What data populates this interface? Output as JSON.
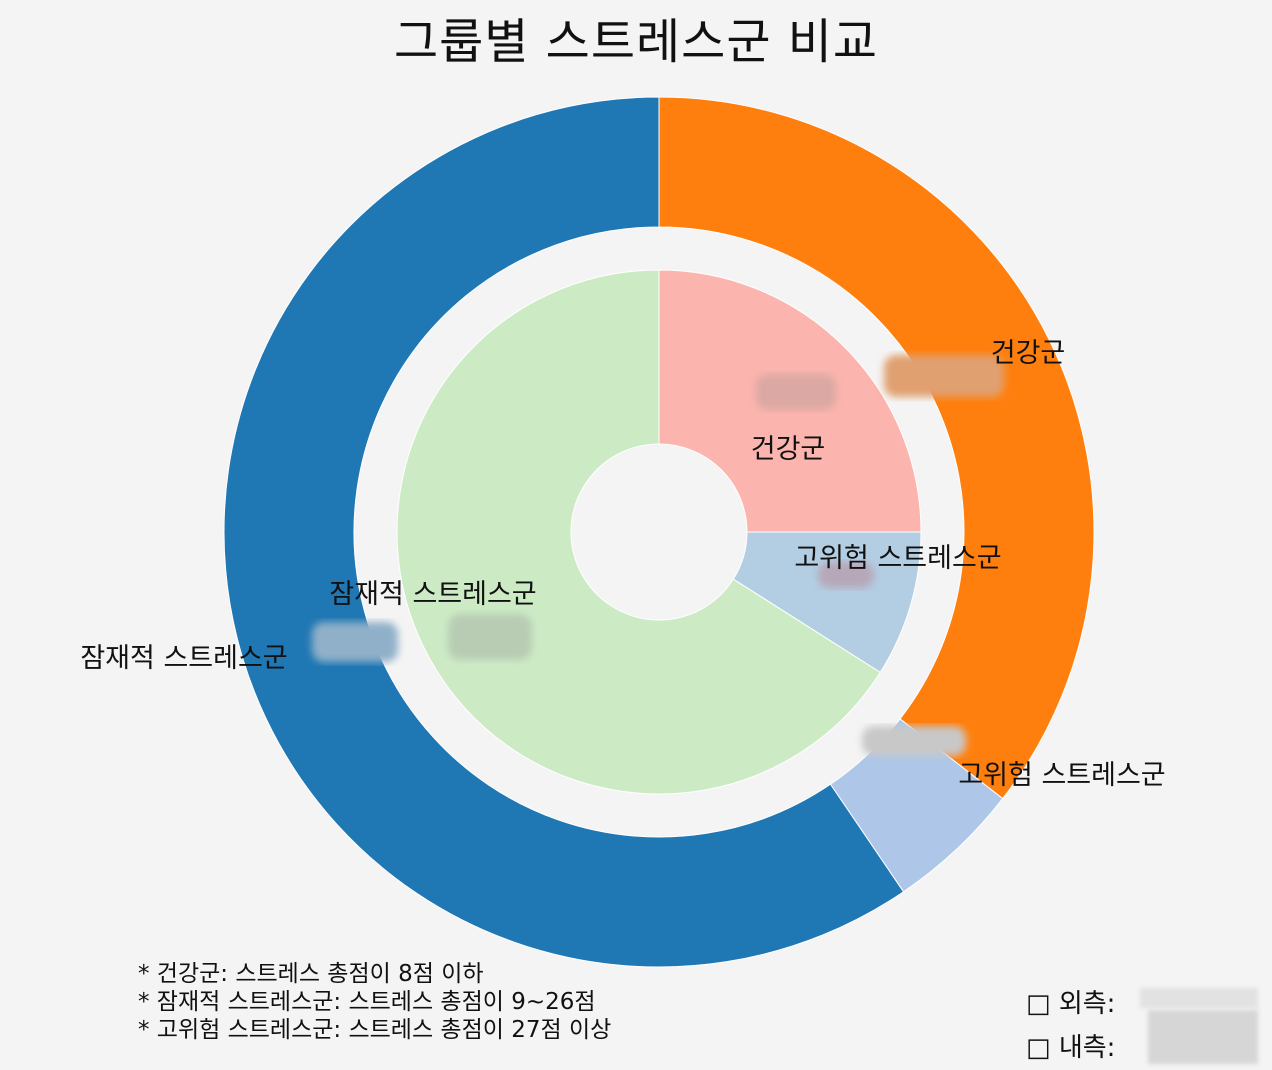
{
  "chart_data": {
    "type": "pie",
    "title": "그룹별 스트레스군 비교",
    "rings": [
      {
        "name": "외측",
        "slices": [
          {
            "label": "건강군",
            "value": 35.5,
            "color": "#ff7f0e"
          },
          {
            "label": "고위험 스트레스군",
            "value": 5.0,
            "color": "#aec7e8"
          },
          {
            "label": "잠재적 스트레스군",
            "value": 59.5,
            "color": "#1f77b4"
          }
        ]
      },
      {
        "name": "내측",
        "slices": [
          {
            "label": "건강군",
            "value": 25.0,
            "color": "#fbb4ae"
          },
          {
            "label": "고위험 스트레스군",
            "value": 9.0,
            "color": "#b3cde3"
          },
          {
            "label": "잠재적 스트레스군",
            "value": 66.0,
            "color": "#ccebc5"
          }
        ]
      }
    ],
    "start_angle": "12 o'clock",
    "direction": "clockwise"
  },
  "footnotes": [
    "* 건강군: 스트레스 총점이 8점 이하",
    "* 잠재적 스트레스군: 스트레스 총점이 9~26점",
    "* 고위험 스트레스군: 스트레스 총점이 27점 이상"
  ],
  "legend": {
    "outer_label": "□ 외측:",
    "inner_label": "□ 내측:"
  }
}
